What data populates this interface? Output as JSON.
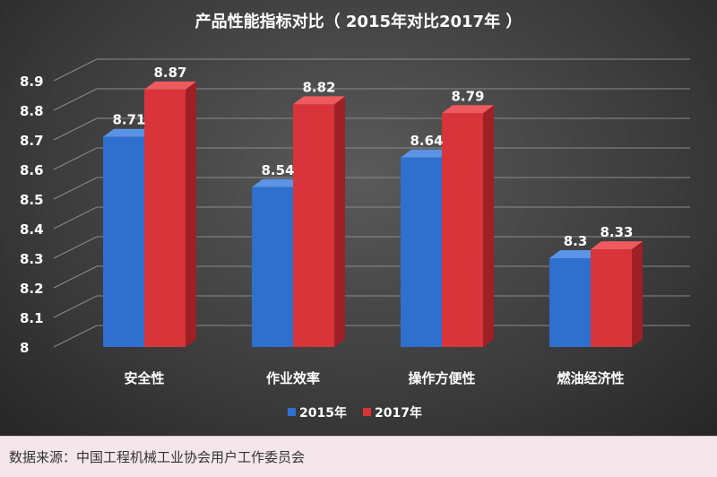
{
  "chart_data": {
    "type": "bar",
    "title": "产品性能指标对比（ 2015年对比2017年 ）",
    "categories": [
      "安全性",
      "作业效率",
      "操作方便性",
      "燃油经济性"
    ],
    "series": [
      {
        "name": "2015年",
        "values": [
          8.71,
          8.54,
          8.64,
          8.3
        ],
        "data_labels": [
          "8.71",
          "8.54",
          "8.64",
          "8.3"
        ]
      },
      {
        "name": "2017年",
        "values": [
          8.87,
          8.82,
          8.79,
          8.33
        ],
        "data_labels": [
          "8.87",
          "8.82",
          "8.79",
          "8.33"
        ]
      }
    ],
    "xlabel": "",
    "ylabel": "",
    "ylim": [
      8,
      8.9
    ],
    "yticks": [
      "8",
      "8.1",
      "8.2",
      "8.3",
      "8.4",
      "8.5",
      "8.6",
      "8.7",
      "8.8",
      "8.9"
    ],
    "grid": true,
    "style": "3d",
    "legend_position": "bottom",
    "colors": {
      "series_2015": "#2f6fcd",
      "series_2015_side": "#1d4f9e",
      "series_2015_top": "#5b93e6",
      "series_2017": "#d8343a",
      "series_2017_side": "#9e2024",
      "series_2017_top": "#ee5a5e",
      "gridline": "#8a8a8a",
      "text": "#ffffff"
    }
  },
  "source": "数据来源：中国工程机械工业协会用户工作委员会"
}
